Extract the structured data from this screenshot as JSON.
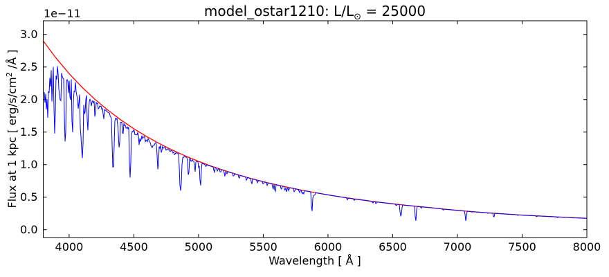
{
  "figure": {
    "title": {
      "prefix": "model_ostar1210: L/L",
      "sub": "⊙",
      "suffix": " = 25000"
    },
    "offset_text": "1e−11",
    "xlabel": "Wavelength [ Å ]",
    "ylabel": {
      "prefix": "Flux at 1 kpc [ erg/s/cm",
      "sup": "2",
      "suffix": " /Å ]"
    }
  },
  "colors": {
    "spectrum": "#0000ff",
    "continuum": "#ff0000",
    "axis": "#000000",
    "background": "#ffffff"
  },
  "chart_data": {
    "type": "line",
    "title": "model_ostar1210: L/L⊙ = 25000",
    "xlabel": "Wavelength [ Å ]",
    "ylabel": "Flux at 1 kpc [ erg/s/cm² /Å ]",
    "y_units_multiplier": "1e-11",
    "xlim": [
      3800,
      8000
    ],
    "ylim": [
      -0.12,
      3.21
    ],
    "x_ticks": [
      4000,
      4500,
      5000,
      5500,
      6000,
      6500,
      7000,
      7500,
      8000
    ],
    "y_ticks": [
      0.0,
      0.5,
      1.0,
      1.5,
      2.0,
      2.5,
      3.0
    ],
    "grid": false,
    "legend": null,
    "series": [
      {
        "name": "continuum",
        "color": "#ff0000",
        "x": [
          3800,
          3900,
          4000,
          4100,
          4200,
          4300,
          4400,
          4500,
          4600,
          4700,
          4800,
          4900,
          5000,
          5100,
          5200,
          5300,
          5400,
          5500,
          5600,
          5700,
          5800,
          5900,
          6000,
          6100,
          6200,
          6300,
          6400,
          6500,
          6600,
          6700,
          6800,
          6900,
          7000,
          7100,
          7200,
          7300,
          7400,
          7500,
          7600,
          7700,
          7800,
          7900,
          8000
        ],
        "y": [
          2.9,
          2.634,
          2.398,
          2.189,
          2.002,
          1.836,
          1.686,
          1.551,
          1.43,
          1.321,
          1.222,
          1.132,
          1.05,
          0.976,
          0.909,
          0.847,
          0.79,
          0.738,
          0.691,
          0.647,
          0.607,
          0.57,
          0.535,
          0.503,
          0.474,
          0.447,
          0.421,
          0.398,
          0.376,
          0.356,
          0.337,
          0.316,
          0.297,
          0.28,
          0.264,
          0.25,
          0.237,
          0.225,
          0.214,
          0.204,
          0.194,
          0.184,
          0.175
        ]
      },
      {
        "name": "spectrum",
        "color": "#0000ff",
        "wl_range": [
          3805,
          8000
        ],
        "continuum_follows": "continuum",
        "absorption_lines": [
          [
            3805,
            2.05
          ],
          [
            3810,
            2.3
          ],
          [
            3813,
            1.95
          ],
          [
            3816,
            2.5
          ],
          [
            3819,
            2.2
          ],
          [
            3824,
            1.85
          ],
          [
            3827,
            2.4
          ],
          [
            3830,
            2.3
          ],
          [
            3835,
            1.72,
            1.5
          ],
          [
            3842,
            2.35
          ],
          [
            3846,
            2.1
          ],
          [
            3851,
            2.4
          ],
          [
            3856,
            2.2
          ],
          [
            3862,
            2.45
          ],
          [
            3868,
            1.95
          ],
          [
            3872,
            2.3
          ],
          [
            3879,
            2.5
          ],
          [
            3884,
            2.25
          ],
          [
            3889,
            1.47,
            1.6
          ],
          [
            3897,
            2.45
          ],
          [
            3903,
            2.3
          ],
          [
            3912,
            2.5
          ],
          [
            3920,
            2.2
          ],
          [
            3926,
            2.05
          ],
          [
            3934,
            1.9
          ],
          [
            3946,
            2.35
          ],
          [
            3955,
            2.3
          ],
          [
            3964,
            2.15
          ],
          [
            3970,
            1.33,
            1.8
          ],
          [
            3983,
            2.3
          ],
          [
            3995,
            2.1
          ],
          [
            4009,
            1.95
          ],
          [
            4026,
            1.48,
            1.6
          ],
          [
            4035,
            2.2
          ],
          [
            4041,
            2.1
          ],
          [
            4058,
            2.05
          ],
          [
            4069,
            1.85
          ],
          [
            4076,
            1.95
          ],
          [
            4089,
            1.4
          ],
          [
            4097,
            1.75
          ],
          [
            4102,
            1.1,
            2.2
          ],
          [
            4110,
            2.0
          ],
          [
            4116,
            1.9
          ],
          [
            4121,
            1.75
          ],
          [
            4129,
            2.0
          ],
          [
            4144,
            1.52,
            1.5
          ],
          [
            4153,
            1.95
          ],
          [
            4163,
            2.0
          ],
          [
            4172,
            1.9
          ],
          [
            4187,
            1.95
          ],
          [
            4200,
            1.72
          ],
          [
            4213,
            1.95
          ],
          [
            4227,
            1.85
          ],
          [
            4236,
            1.9
          ],
          [
            4253,
            1.85
          ],
          [
            4267,
            1.7
          ],
          [
            4276,
            1.85
          ],
          [
            4300,
            1.8
          ],
          [
            4317,
            1.75
          ],
          [
            4326,
            1.7
          ],
          [
            4340,
            0.92,
            2.2
          ],
          [
            4350,
            1.65
          ],
          [
            4363,
            1.7
          ],
          [
            4379,
            1.55
          ],
          [
            4387,
            1.25,
            1.5
          ],
          [
            4397,
            1.65
          ],
          [
            4415,
            1.45
          ],
          [
            4430,
            1.6
          ],
          [
            4442,
            1.55
          ],
          [
            4455,
            1.55
          ],
          [
            4471,
            0.8,
            1.8
          ],
          [
            4481,
            1.45
          ],
          [
            4491,
            1.5
          ],
          [
            4511,
            1.45
          ],
          [
            4522,
            1.45
          ],
          [
            4541,
            1.3
          ],
          [
            4553,
            1.35
          ],
          [
            4568,
            1.4
          ],
          [
            4575,
            1.42
          ],
          [
            4590,
            1.35
          ],
          [
            4603,
            1.35
          ],
          [
            4621,
            1.35
          ],
          [
            4631,
            1.3
          ],
          [
            4640,
            1.25
          ],
          [
            4650,
            1.28
          ],
          [
            4658,
            1.3
          ],
          [
            4676,
            1.3
          ],
          [
            4686,
            0.92,
            1.6
          ],
          [
            4700,
            1.25
          ],
          [
            4713,
            1.18
          ],
          [
            4730,
            1.25
          ],
          [
            4751,
            1.22
          ],
          [
            4780,
            1.2
          ],
          [
            4803,
            1.18
          ],
          [
            4815,
            1.15
          ],
          [
            4861,
            0.6,
            2.4
          ],
          [
            4880,
            1.1
          ],
          [
            4922,
            0.83,
            1.5
          ],
          [
            4943,
            1.05
          ],
          [
            4960,
            1.05
          ],
          [
            4973,
            0.89
          ],
          [
            5002,
            0.95
          ],
          [
            5015,
            0.67,
            1.5
          ],
          [
            5047,
            1.0
          ],
          [
            5056,
            0.97
          ],
          [
            5122,
            0.88
          ],
          [
            5145,
            0.9
          ],
          [
            5169,
            0.88
          ],
          [
            5203,
            0.82
          ],
          [
            5219,
            0.86
          ],
          [
            5270,
            0.82
          ],
          [
            5314,
            0.79
          ],
          [
            5370,
            0.76
          ],
          [
            5411,
            0.7
          ],
          [
            5455,
            0.72
          ],
          [
            5500,
            0.7
          ],
          [
            5530,
            0.68
          ],
          [
            5576,
            0.62
          ],
          [
            5592,
            0.58
          ],
          [
            5640,
            0.62
          ],
          [
            5666,
            0.6
          ],
          [
            5680,
            0.58
          ],
          [
            5696,
            0.6
          ],
          [
            5740,
            0.58
          ],
          [
            5780,
            0.57
          ],
          [
            5801,
            0.55
          ],
          [
            5812,
            0.55
          ],
          [
            5876,
            0.28,
            1.5
          ],
          [
            5890,
            0.52
          ],
          [
            5897,
            0.53
          ],
          [
            6150,
            0.46
          ],
          [
            6203,
            0.45
          ],
          [
            6347,
            0.41
          ],
          [
            6371,
            0.4
          ],
          [
            6528,
            0.37
          ],
          [
            6563,
            0.21,
            2.0
          ],
          [
            6678,
            0.13,
            1.4
          ],
          [
            6721,
            0.33
          ],
          [
            6891,
            0.3
          ],
          [
            7065,
            0.135,
            1.4
          ],
          [
            7111,
            0.27
          ],
          [
            7236,
            0.25
          ],
          [
            7281,
            0.19
          ],
          [
            7468,
            0.22
          ],
          [
            7612,
            0.2
          ],
          [
            7774,
            0.185
          ],
          [
            7823,
            0.19
          ],
          [
            7896,
            0.18
          ]
        ]
      }
    ]
  }
}
